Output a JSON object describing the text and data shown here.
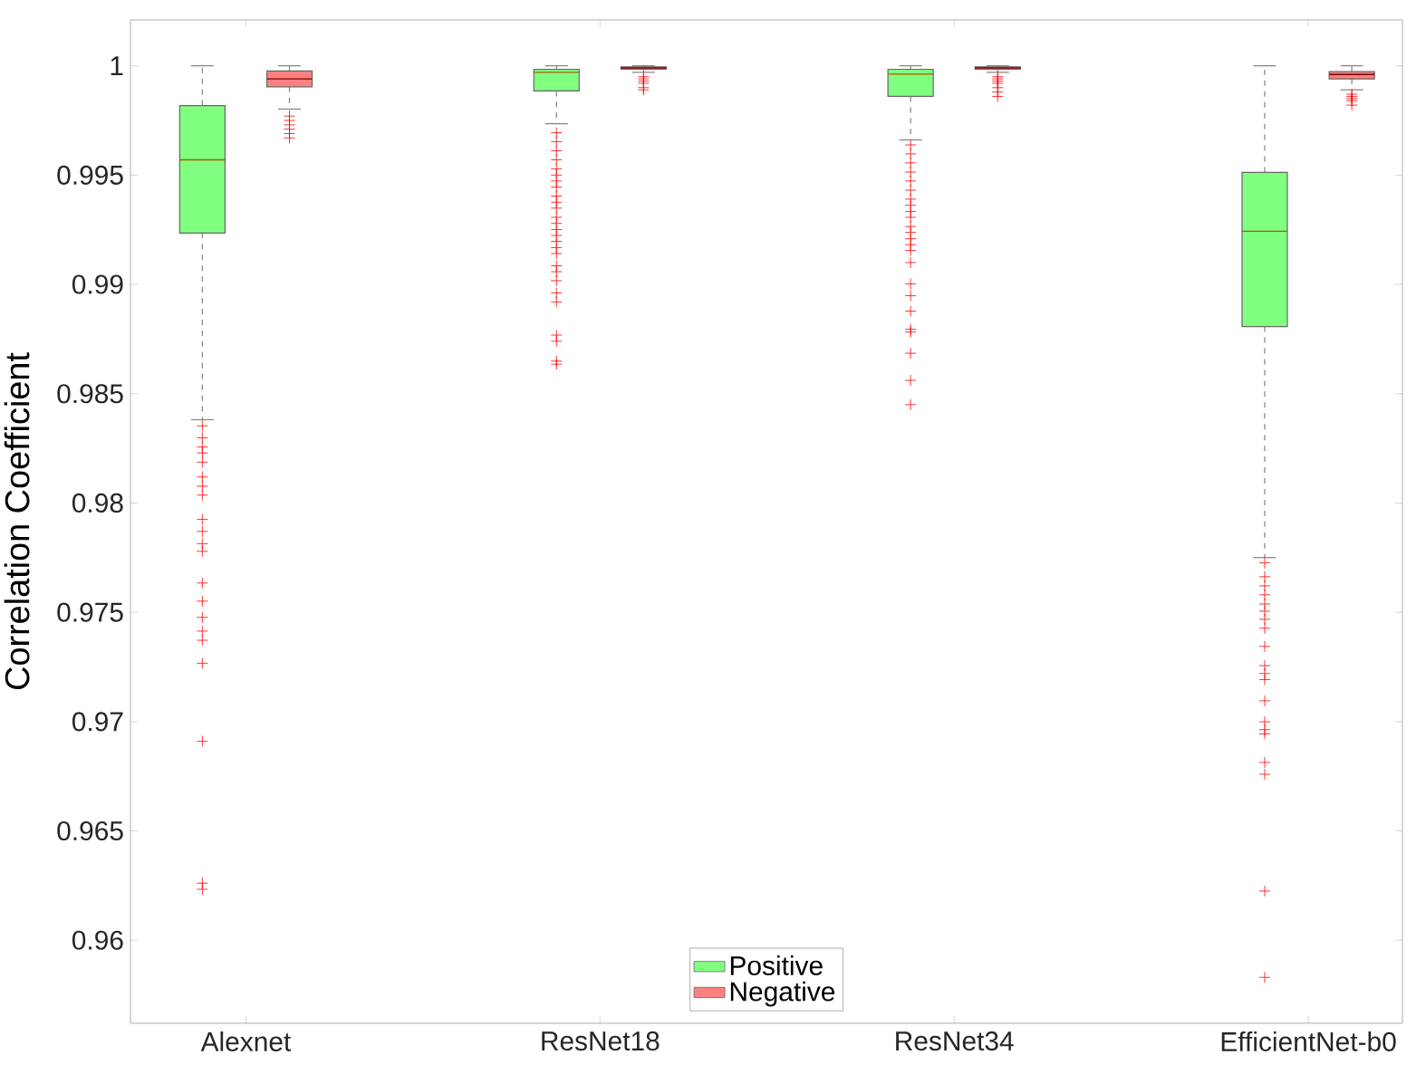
{
  "chart_data": {
    "type": "box",
    "ylabel": "Correlation Coefficient",
    "categories": [
      "Alexnet",
      "ResNet18",
      "ResNet34",
      "EfficientNet-b0"
    ],
    "ylim": [
      0.9562,
      1.0021
    ],
    "yticks": [
      0.96,
      0.965,
      0.97,
      0.975,
      0.98,
      0.985,
      0.99,
      0.995,
      1
    ],
    "legend": "bottom",
    "marker": "cross",
    "series": [
      {
        "name": "Positive",
        "color": "#80ff80",
        "boxes": [
          {
            "low": 0.98381,
            "q1": 0.99235,
            "median": 0.9957,
            "q3": 0.99818,
            "high": 1.0,
            "outliers": [
              0.98353,
              0.98298,
              0.98256,
              0.98229,
              0.98187,
              0.98119,
              0.98077,
              0.98036,
              0.97925,
              0.9787,
              0.97814,
              0.97779,
              0.97634,
              0.97551,
              0.97477,
              0.97414,
              0.97372,
              0.97267,
              0.9691,
              0.96261,
              0.96233
            ]
          },
          {
            "low": 0.99735,
            "q1": 0.99885,
            "median": 0.9997,
            "q3": 0.99984,
            "high": 1.0,
            "outliers": [
              0.99694,
              0.99653,
              0.99611,
              0.9957,
              0.99528,
              0.995,
              0.99473,
              0.99445,
              0.99404,
              0.99376,
              0.99349,
              0.99307,
              0.99279,
              0.99251,
              0.99224,
              0.99197,
              0.99168,
              0.99141,
              0.99085,
              0.99058,
              0.99017,
              0.98961,
              0.9892,
              0.98768,
              0.9874,
              0.98649,
              0.98635
            ]
          },
          {
            "low": 0.99661,
            "q1": 0.9986,
            "median": 0.99962,
            "q3": 0.99984,
            "high": 1.0,
            "outliers": [
              0.99638,
              0.99597,
              0.99556,
              0.99514,
              0.99473,
              0.99431,
              0.9939,
              0.99362,
              0.99334,
              0.99307,
              0.99265,
              0.99238,
              0.99209,
              0.99182,
              0.99155,
              0.991,
              0.99002,
              0.98948,
              0.98878,
              0.98795,
              0.98782,
              0.98685,
              0.98561,
              0.9845
            ]
          },
          {
            "low": 0.9775,
            "q1": 0.98807,
            "median": 0.99243,
            "q3": 0.99512,
            "high": 1.0,
            "outliers": [
              0.97726,
              0.97663,
              0.97621,
              0.9758,
              0.97538,
              0.97505,
              0.97468,
              0.97427,
              0.97344,
              0.97256,
              0.9722,
              0.97192,
              0.97095,
              0.96999,
              0.96963,
              0.96944,
              0.96813,
              0.96759,
              0.96225,
              0.9583
            ]
          }
        ]
      },
      {
        "name": "Negative",
        "color": "#ff8080",
        "boxes": [
          {
            "low": 0.99802,
            "q1": 0.99904,
            "median": 0.9994,
            "q3": 0.99976,
            "high": 1.0,
            "outliers": [
              0.9977,
              0.9975,
              0.9973,
              0.9971,
              0.9969,
              0.9967
            ]
          },
          {
            "low": 0.9997,
            "q1": 0.99984,
            "median": 0.9999,
            "q3": 0.99995,
            "high": 1.0,
            "outliers": [
              0.9995,
              0.9994,
              0.9993,
              0.9992,
              0.999,
              0.9989
            ]
          },
          {
            "low": 0.9997,
            "q1": 0.99984,
            "median": 0.9999,
            "q3": 0.99995,
            "high": 1.0,
            "outliers": [
              0.9995,
              0.9994,
              0.9993,
              0.9992,
              0.999,
              0.9988,
              0.9986
            ]
          },
          {
            "low": 0.9989,
            "q1": 0.9994,
            "median": 0.9996,
            "q3": 0.99973,
            "high": 1.0,
            "outliers": [
              0.9987,
              0.9986,
              0.9985,
              0.9984,
              0.9982
            ]
          }
        ]
      }
    ]
  }
}
